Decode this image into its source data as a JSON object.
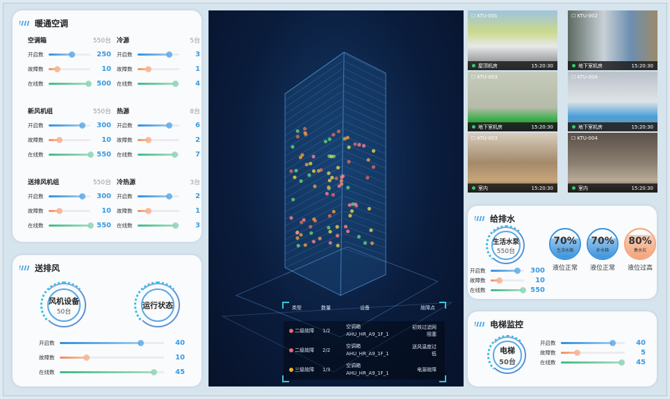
{
  "hvac": {
    "title": "暖通空调",
    "groups": [
      {
        "name": "空调箱",
        "total": "550台",
        "rows": [
          {
            "label": "开启数",
            "value": "250",
            "fill": 0.55,
            "color": "blue"
          },
          {
            "label": "故障数",
            "value": "10",
            "fill": 0.2,
            "color": "orange"
          },
          {
            "label": "在线数",
            "value": "500",
            "fill": 0.95,
            "color": "green"
          }
        ]
      },
      {
        "name": "冷源",
        "total": "5台",
        "rows": [
          {
            "label": "开启数",
            "value": "3",
            "fill": 0.75,
            "color": "blue"
          },
          {
            "label": "故障数",
            "value": "1",
            "fill": 0.25,
            "color": "orange"
          },
          {
            "label": "在线数",
            "value": "4",
            "fill": 0.9,
            "color": "green"
          }
        ]
      },
      {
        "name": "新风机组",
        "total": "550台",
        "rows": [
          {
            "label": "开启数",
            "value": "300",
            "fill": 0.8,
            "color": "blue"
          },
          {
            "label": "故障数",
            "value": "10",
            "fill": 0.25,
            "color": "orange"
          },
          {
            "label": "在线数",
            "value": "550",
            "fill": 1.0,
            "color": "green"
          }
        ]
      },
      {
        "name": "热源",
        "total": "8台",
        "rows": [
          {
            "label": "开启数",
            "value": "6",
            "fill": 0.75,
            "color": "blue"
          },
          {
            "label": "故障数",
            "value": "2",
            "fill": 0.25,
            "color": "orange"
          },
          {
            "label": "在线数",
            "value": "7",
            "fill": 0.88,
            "color": "green"
          }
        ]
      },
      {
        "name": "送排风机组",
        "total": "550台",
        "rows": [
          {
            "label": "开启数",
            "value": "300",
            "fill": 0.8,
            "color": "blue"
          },
          {
            "label": "故障数",
            "value": "10",
            "fill": 0.25,
            "color": "orange"
          },
          {
            "label": "在线数",
            "value": "550",
            "fill": 1.0,
            "color": "green"
          }
        ]
      },
      {
        "name": "冷热源",
        "total": "3台",
        "rows": [
          {
            "label": "开启数",
            "value": "2",
            "fill": 0.75,
            "color": "blue"
          },
          {
            "label": "故障数",
            "value": "1",
            "fill": 0.25,
            "color": "orange"
          },
          {
            "label": "在线数",
            "value": "3",
            "fill": 0.9,
            "color": "green"
          }
        ]
      }
    ]
  },
  "ventilation": {
    "title": "送排风",
    "fan": {
      "name": "风机设备",
      "count": "50台"
    },
    "status": {
      "name": "运行状态"
    },
    "rows": [
      {
        "label": "开启数",
        "value": "40",
        "fill": 0.77,
        "color": "blue"
      },
      {
        "label": "故障数",
        "value": "10",
        "fill": 0.25,
        "color": "orange"
      },
      {
        "label": "在线数",
        "value": "45",
        "fill": 0.9,
        "color": "green"
      }
    ]
  },
  "alarms": {
    "headers": [
      "类型",
      "数量",
      "设备",
      "故障点"
    ],
    "rows": [
      {
        "level": "二级故障",
        "dot": "#e46a7a",
        "count": "1/2",
        "device": "空调箱",
        "code": "AHU_HR_A9_1F_1",
        "point": "初效过滤网阻塞"
      },
      {
        "level": "二级故障",
        "dot": "#e46a7a",
        "count": "2/2",
        "device": "空调箱",
        "code": "AHU_HR_A9_1F_1",
        "point": "送风温度过低"
      },
      {
        "level": "三级故障",
        "dot": "#f2b029",
        "count": "1/3",
        "device": "空调箱",
        "code": "AHU_HR_A9_1F_1",
        "point": "电源故障"
      }
    ]
  },
  "cameras": [
    {
      "id": "KTU-001",
      "location": "屋顶机房",
      "time": "15:20:30"
    },
    {
      "id": "KTU-002",
      "location": "地下室机房",
      "time": "15:20:30"
    },
    {
      "id": "KTU-003",
      "location": "地下室机房",
      "time": "15:20:30"
    },
    {
      "id": "KTU-004",
      "location": "地下室机房",
      "time": "15:20:30"
    },
    {
      "id": "KTU-003",
      "location": "室内",
      "time": "15:20:30"
    },
    {
      "id": "KTU-004",
      "location": "室内",
      "time": "15:20:30"
    }
  ],
  "water": {
    "title": "给排水",
    "pump": {
      "name": "生活水泵",
      "count": "550台"
    },
    "rows": [
      {
        "label": "开启数",
        "value": "300",
        "fill": 0.8,
        "color": "blue"
      },
      {
        "label": "故障数",
        "value": "10",
        "fill": 0.25,
        "color": "orange"
      },
      {
        "label": "在线数",
        "value": "550",
        "fill": 0.95,
        "color": "green"
      }
    ],
    "tanks": [
      {
        "percent": "70%",
        "level": 0.7,
        "name": "生活水箱",
        "status": "液位正常",
        "color": "#3a93dc"
      },
      {
        "percent": "70%",
        "level": 0.7,
        "name": "补水箱",
        "status": "液位正常",
        "color": "#3a93dc"
      },
      {
        "percent": "80%",
        "level": 0.8,
        "name": "集水坑",
        "status": "液位过高",
        "color": "#f4a37a"
      }
    ]
  },
  "elevator": {
    "title": "电梯监控",
    "name": "电梯",
    "count": "50台",
    "rows": [
      {
        "label": "开启数",
        "value": "40",
        "fill": 0.8,
        "color": "blue"
      },
      {
        "label": "故障数",
        "value": "5",
        "fill": 0.25,
        "color": "orange"
      },
      {
        "label": "在线数",
        "value": "45",
        "fill": 0.95,
        "color": "green"
      }
    ]
  }
}
